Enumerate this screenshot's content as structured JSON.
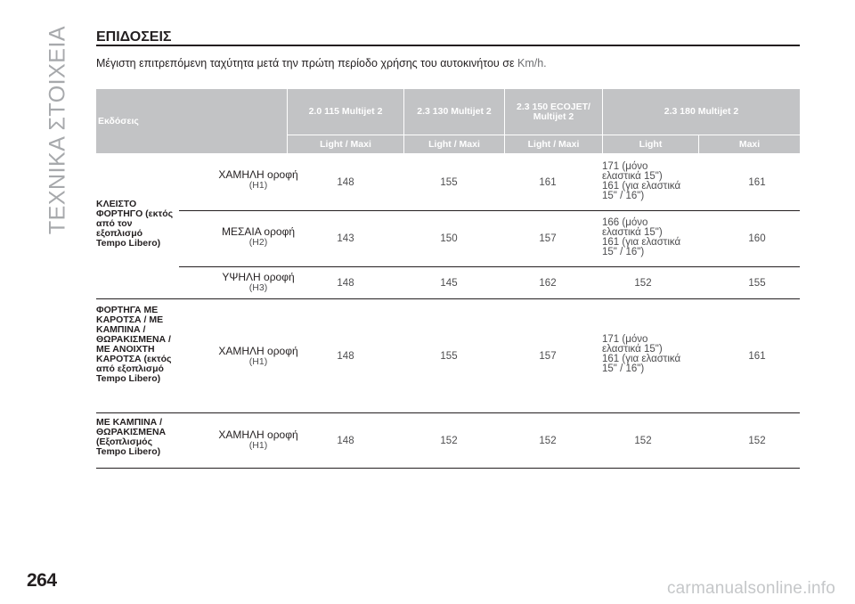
{
  "side_title": "ΤΕΧΝΙΚΑ ΣΤΟΙΧΕΙΑ",
  "page_number": "264",
  "watermark": "carmanualsonline.info",
  "heading": "ΕΠΙΔΟΣΕΙΣ",
  "subtitle": {
    "text": "Μέγιστη επιτρεπόμενη ταχύτητα μετά την πρώτη περίοδο χρήσης του αυτοκινήτου σε ",
    "unit": "Km/h."
  },
  "table": {
    "corner_label": "Εκδόσεις",
    "engine_headers": [
      "2.0 115 Multijet 2",
      "2.3 130 Multijet 2",
      "2.3 150 ECOJET/ Multijet 2",
      "2.3 180 Multijet 2"
    ],
    "sub_headers": [
      "Light / Maxi",
      "Light / Maxi",
      "Light / Maxi",
      "Light",
      "Maxi"
    ],
    "groups": [
      {
        "label": "ΚΛΕΙΣΤΟ ΦΟΡΤΗΓΟ (εκτός από τον εξοπλισμό Tempo Libero)",
        "rows": [
          {
            "roof": "ΧΑΜΗΛΗ οροφή",
            "code": "(H1)",
            "values": [
              "148",
              "155",
              "161"
            ],
            "light_lines": [
              "171 (μόνο",
              "ελαστικά 15\")",
              "161 (για ελαστικά",
              "15\" / 16\")"
            ],
            "maxi": "161"
          },
          {
            "roof": "ΜΕΣΑΙΑ οροφή",
            "code": "(H2)",
            "values": [
              "143",
              "150",
              "157"
            ],
            "light_lines": [
              "166 (μόνο",
              "ελαστικά 15\")",
              "161 (για ελαστικά",
              "15\" / 16\")"
            ],
            "maxi": "160"
          },
          {
            "roof": "ΥΨΗΛΗ οροφή",
            "code": "(H3)",
            "values": [
              "148",
              "145",
              "162"
            ],
            "light": "152",
            "maxi": "155"
          }
        ]
      },
      {
        "label": "ΦΟΡΤΗΓΑ ΜΕ ΚΑΡΟΤΣΑ / ΜΕ ΚΑΜΠΙΝΑ / ΘΩΡΑΚΙΣΜΕΝΑ / ΜΕ ΑΝΟΙΧΤΗ ΚΑΡΟΤΣΑ (εκτός από εξοπλισμό Tempo Libero)",
        "rows": [
          {
            "roof": "ΧΑΜΗΛΗ οροφή",
            "code": "(H1)",
            "values": [
              "148",
              "155",
              "157"
            ],
            "light_lines": [
              "171 (μόνο",
              "ελαστικά 15\")",
              "161 (για ελαστικά",
              "15\" / 16\")"
            ],
            "maxi": "161"
          }
        ]
      },
      {
        "label": "ΜΕ ΚΑΜΠΙΝΑ / ΘΩΡΑΚΙΣΜΕΝΑ (Εξοπλισμός Tempo Libero)",
        "rows": [
          {
            "roof": "ΧΑΜΗΛΗ οροφή",
            "code": "(H1)",
            "values": [
              "148",
              "152",
              "152"
            ],
            "light": "152",
            "maxi": "152"
          }
        ]
      }
    ]
  }
}
